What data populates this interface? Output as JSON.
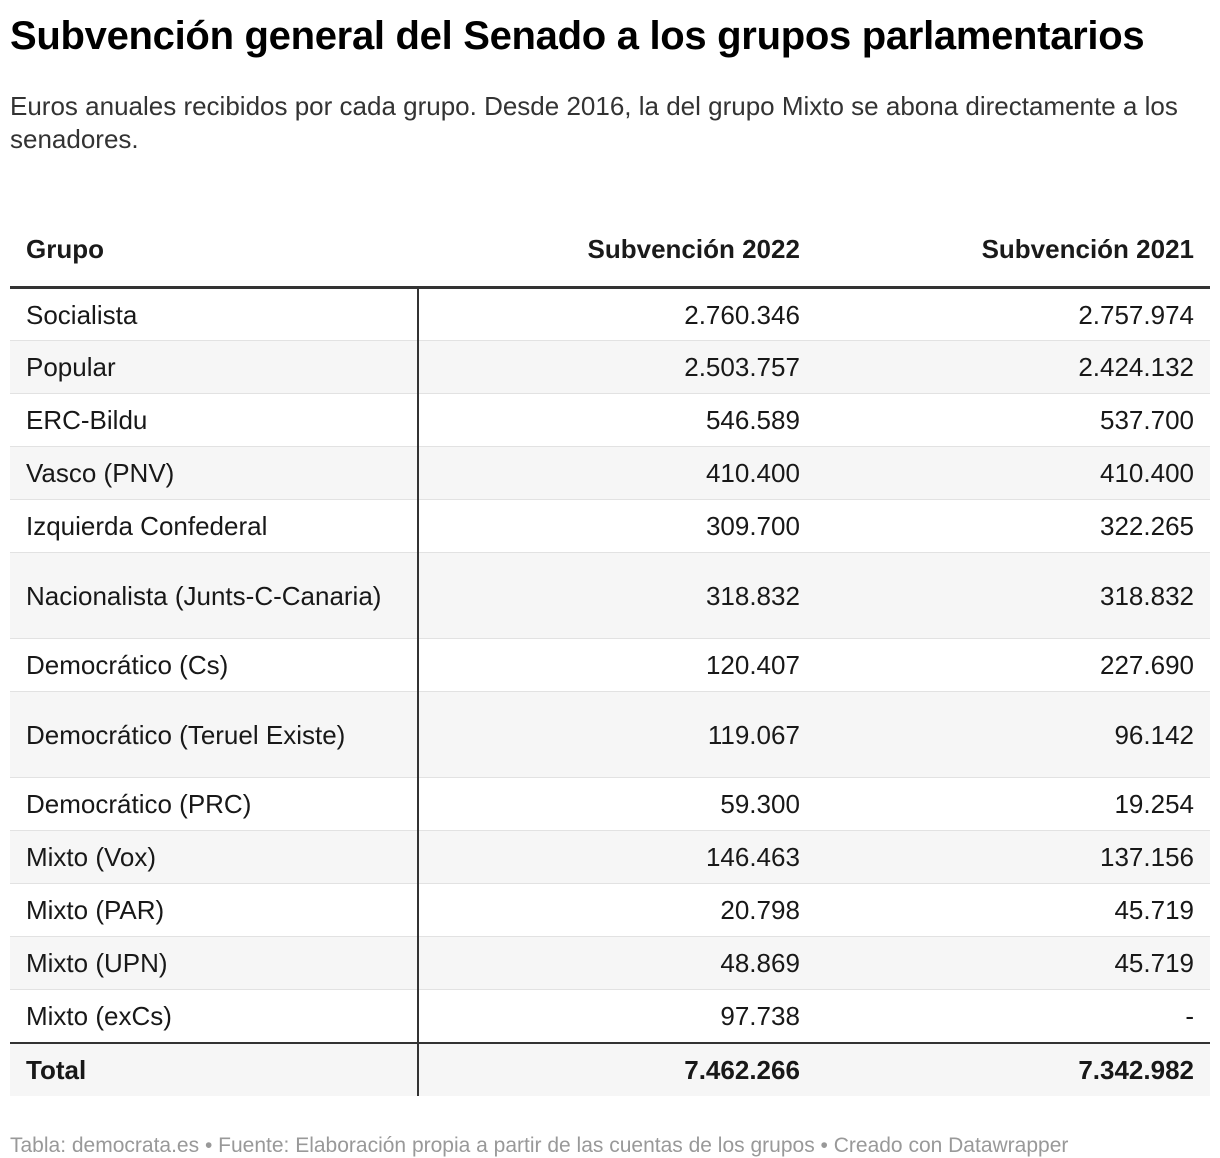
{
  "title": "Subvención general del Senado a los grupos parlamentarios",
  "subtitle": "Euros anuales recibidos por cada grupo. Desde 2016, la del grupo Mixto se abona directamente a los senadores.",
  "footer": {
    "source_label": "Tabla: democrata.es",
    "separator": "•",
    "fuente": "Fuente: Elaboración propia a partir de las cuentas de los grupos",
    "credit": "Creado con Datawrapper"
  },
  "colors": {
    "text": "#181818",
    "muted": "#999999",
    "row_stripe": "#f6f6f6",
    "rule": "#333333"
  },
  "chart_data": {
    "type": "table",
    "columns": [
      "Grupo",
      "Subvención 2022",
      "Subvención 2021"
    ],
    "rows": [
      [
        "Socialista",
        "2.760.346",
        "2.757.974"
      ],
      [
        "Popular",
        "2.503.757",
        "2.424.132"
      ],
      [
        "ERC-Bildu",
        "546.589",
        "537.700"
      ],
      [
        "Vasco (PNV)",
        "410.400",
        "410.400"
      ],
      [
        "Izquierda Confederal",
        "309.700",
        "322.265"
      ],
      [
        "Nacionalista (Junts-C-Canaria)",
        "318.832",
        "318.832"
      ],
      [
        "Democrático (Cs)",
        "120.407",
        "227.690"
      ],
      [
        "Democrático (Teruel Existe)",
        "119.067",
        "96.142"
      ],
      [
        "Democrático (PRC)",
        "59.300",
        "19.254"
      ],
      [
        "Mixto (Vox)",
        "146.463",
        "137.156"
      ],
      [
        "Mixto (PAR)",
        "20.798",
        "45.719"
      ],
      [
        "Mixto (UPN)",
        "48.869",
        "45.719"
      ],
      [
        "Mixto (exCs)",
        "97.738",
        "-"
      ]
    ],
    "total": [
      "Total",
      "7.462.266",
      "7.342.982"
    ]
  }
}
